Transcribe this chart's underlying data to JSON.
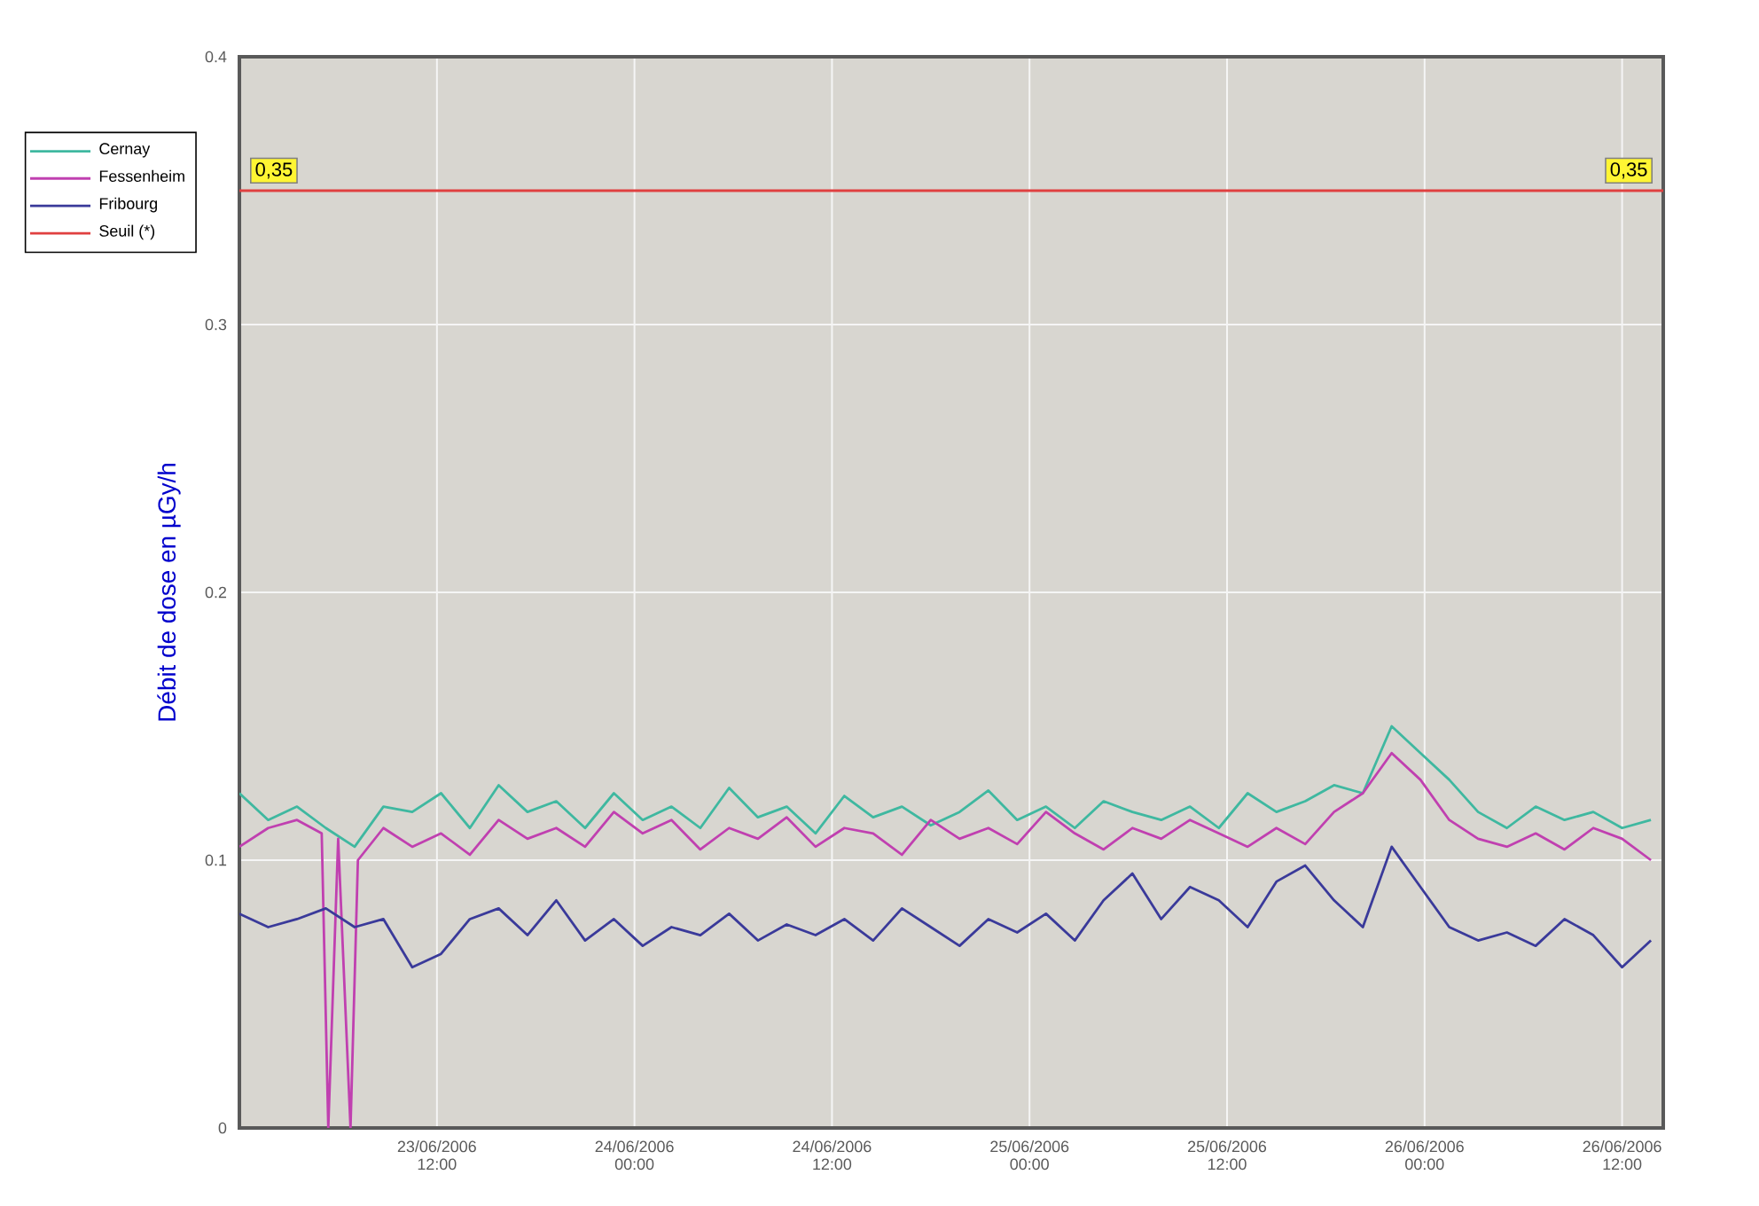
{
  "chart_data": {
    "type": "line",
    "ylabel": "Débit de dose en µGy/h",
    "x": [
      "2006-06-23T00:00",
      "2006-06-23T01:45",
      "2006-06-23T03:30",
      "2006-06-23T05:15",
      "2006-06-23T07:00",
      "2006-06-23T08:45",
      "2006-06-23T10:30",
      "2006-06-23T12:15",
      "2006-06-23T14:00",
      "2006-06-23T15:45",
      "2006-06-23T17:30",
      "2006-06-23T19:15",
      "2006-06-23T21:00",
      "2006-06-23T22:45",
      "2006-06-24T00:30",
      "2006-06-24T02:15",
      "2006-06-24T04:00",
      "2006-06-24T05:45",
      "2006-06-24T07:30",
      "2006-06-24T09:15",
      "2006-06-24T11:00",
      "2006-06-24T12:45",
      "2006-06-24T14:30",
      "2006-06-24T16:15",
      "2006-06-24T18:00",
      "2006-06-24T19:45",
      "2006-06-24T21:30",
      "2006-06-24T23:15",
      "2006-06-25T01:00",
      "2006-06-25T02:45",
      "2006-06-25T04:30",
      "2006-06-25T06:15",
      "2006-06-25T08:00",
      "2006-06-25T09:45",
      "2006-06-25T11:30",
      "2006-06-25T13:15",
      "2006-06-25T15:00",
      "2006-06-25T16:45",
      "2006-06-25T18:30",
      "2006-06-25T20:15",
      "2006-06-25T22:00",
      "2006-06-25T23:45",
      "2006-06-26T01:30",
      "2006-06-26T03:15",
      "2006-06-26T05:00",
      "2006-06-26T06:45",
      "2006-06-26T08:30",
      "2006-06-26T10:15",
      "2006-06-26T12:00",
      "2006-06-26T13:45"
    ],
    "series": [
      {
        "name": "Cernay",
        "color": "#3fb8a0",
        "values": [
          0.125,
          0.115,
          0.12,
          0.112,
          0.105,
          0.12,
          0.118,
          0.125,
          0.112,
          0.128,
          0.118,
          0.122,
          0.112,
          0.125,
          0.115,
          0.12,
          0.112,
          0.127,
          0.116,
          0.12,
          0.11,
          0.124,
          0.116,
          0.12,
          0.113,
          0.118,
          0.126,
          0.115,
          0.12,
          0.112,
          0.122,
          0.118,
          0.115,
          0.12,
          0.112,
          0.125,
          0.118,
          0.122,
          0.128,
          0.125,
          0.15,
          0.14,
          0.13,
          0.118,
          0.112,
          0.12,
          0.115,
          0.118,
          0.112,
          0.115
        ]
      },
      {
        "name": "Fessenheim",
        "color": "#c040b0",
        "x": [
          "2006-06-23T00:00",
          "2006-06-23T01:45",
          "2006-06-23T03:30",
          "2006-06-23T05:00",
          "2006-06-23T05:24",
          "2006-06-23T06:00",
          "2006-06-23T06:45",
          "2006-06-23T07:12",
          "2006-06-23T08:45",
          "2006-06-23T10:30",
          "2006-06-23T12:15",
          "2006-06-23T14:00",
          "2006-06-23T15:45",
          "2006-06-23T17:30",
          "2006-06-23T19:15",
          "2006-06-23T21:00",
          "2006-06-23T22:45",
          "2006-06-24T00:30",
          "2006-06-24T02:15",
          "2006-06-24T04:00",
          "2006-06-24T05:45",
          "2006-06-24T07:30",
          "2006-06-24T09:15",
          "2006-06-24T11:00",
          "2006-06-24T12:45",
          "2006-06-24T14:30",
          "2006-06-24T16:15",
          "2006-06-24T18:00",
          "2006-06-24T19:45",
          "2006-06-24T21:30",
          "2006-06-24T23:15",
          "2006-06-25T01:00",
          "2006-06-25T02:45",
          "2006-06-25T04:30",
          "2006-06-25T06:15",
          "2006-06-25T08:00",
          "2006-06-25T09:45",
          "2006-06-25T11:30",
          "2006-06-25T13:15",
          "2006-06-25T15:00",
          "2006-06-25T16:45",
          "2006-06-25T18:30",
          "2006-06-25T20:15",
          "2006-06-25T22:00",
          "2006-06-25T23:45",
          "2006-06-26T01:30",
          "2006-06-26T03:15",
          "2006-06-26T05:00",
          "2006-06-26T06:45",
          "2006-06-26T08:30",
          "2006-06-26T10:15",
          "2006-06-26T12:00",
          "2006-06-26T13:45"
        ],
        "values": [
          0.105,
          0.112,
          0.115,
          0.11,
          0,
          0.108,
          0,
          0.1,
          0.112,
          0.105,
          0.11,
          0.102,
          0.115,
          0.108,
          0.112,
          0.105,
          0.118,
          0.11,
          0.115,
          0.104,
          0.112,
          0.108,
          0.116,
          0.105,
          0.112,
          0.11,
          0.102,
          0.115,
          0.108,
          0.112,
          0.106,
          0.118,
          0.11,
          0.104,
          0.112,
          0.108,
          0.115,
          0.11,
          0.105,
          0.112,
          0.106,
          0.118,
          0.125,
          0.14,
          0.13,
          0.115,
          0.108,
          0.105,
          0.11,
          0.104,
          0.112,
          0.108,
          0.1
        ]
      },
      {
        "name": "Fribourg",
        "color": "#3a3a9a",
        "values": [
          0.08,
          0.075,
          0.078,
          0.082,
          0.075,
          0.078,
          0.06,
          0.065,
          0.078,
          0.082,
          0.072,
          0.085,
          0.07,
          0.078,
          0.068,
          0.075,
          0.072,
          0.08,
          0.07,
          0.076,
          0.072,
          0.078,
          0.07,
          0.082,
          0.075,
          0.068,
          0.078,
          0.073,
          0.08,
          0.07,
          0.085,
          0.095,
          0.078,
          0.09,
          0.085,
          0.075,
          0.092,
          0.098,
          0.085,
          0.075,
          0.105,
          0.09,
          0.075,
          0.07,
          0.073,
          0.068,
          0.078,
          0.072,
          0.06,
          0.07
        ]
      },
      {
        "name": "Seuil (*)",
        "color": "#e04040",
        "x": [
          "2006-06-23T00:00",
          "2006-06-26T14:30"
        ],
        "values": [
          0.35,
          0.35
        ]
      }
    ],
    "annotations": [
      {
        "text": "0,35",
        "x": "2006-06-23T00:00",
        "y": 0.35
      },
      {
        "text": "0,35",
        "x": "2006-06-26T14:30",
        "y": 0.35
      }
    ],
    "xlim": [
      "2006-06-23T00:00",
      "2006-06-26T14:30"
    ],
    "xticks": [
      {
        "value": "2006-06-23T12:00",
        "label": "23/06/2006 12:00"
      },
      {
        "value": "2006-06-24T00:00",
        "label": "24/06/2006 00:00"
      },
      {
        "value": "2006-06-24T12:00",
        "label": "24/06/2006 12:00"
      },
      {
        "value": "2006-06-25T00:00",
        "label": "25/06/2006 00:00"
      },
      {
        "value": "2006-06-25T12:00",
        "label": "25/06/2006 12:00"
      },
      {
        "value": "2006-06-26T00:00",
        "label": "26/06/2006 00:00"
      },
      {
        "value": "2006-06-26T12:00",
        "label": "26/06/2006 12:00"
      }
    ],
    "ylim": [
      0,
      0.4
    ],
    "yticks": [
      0,
      0.1,
      0.2,
      0.3,
      0.4
    ],
    "grid": true,
    "legend": "top left",
    "marker": "none",
    "line_style": "solid"
  }
}
